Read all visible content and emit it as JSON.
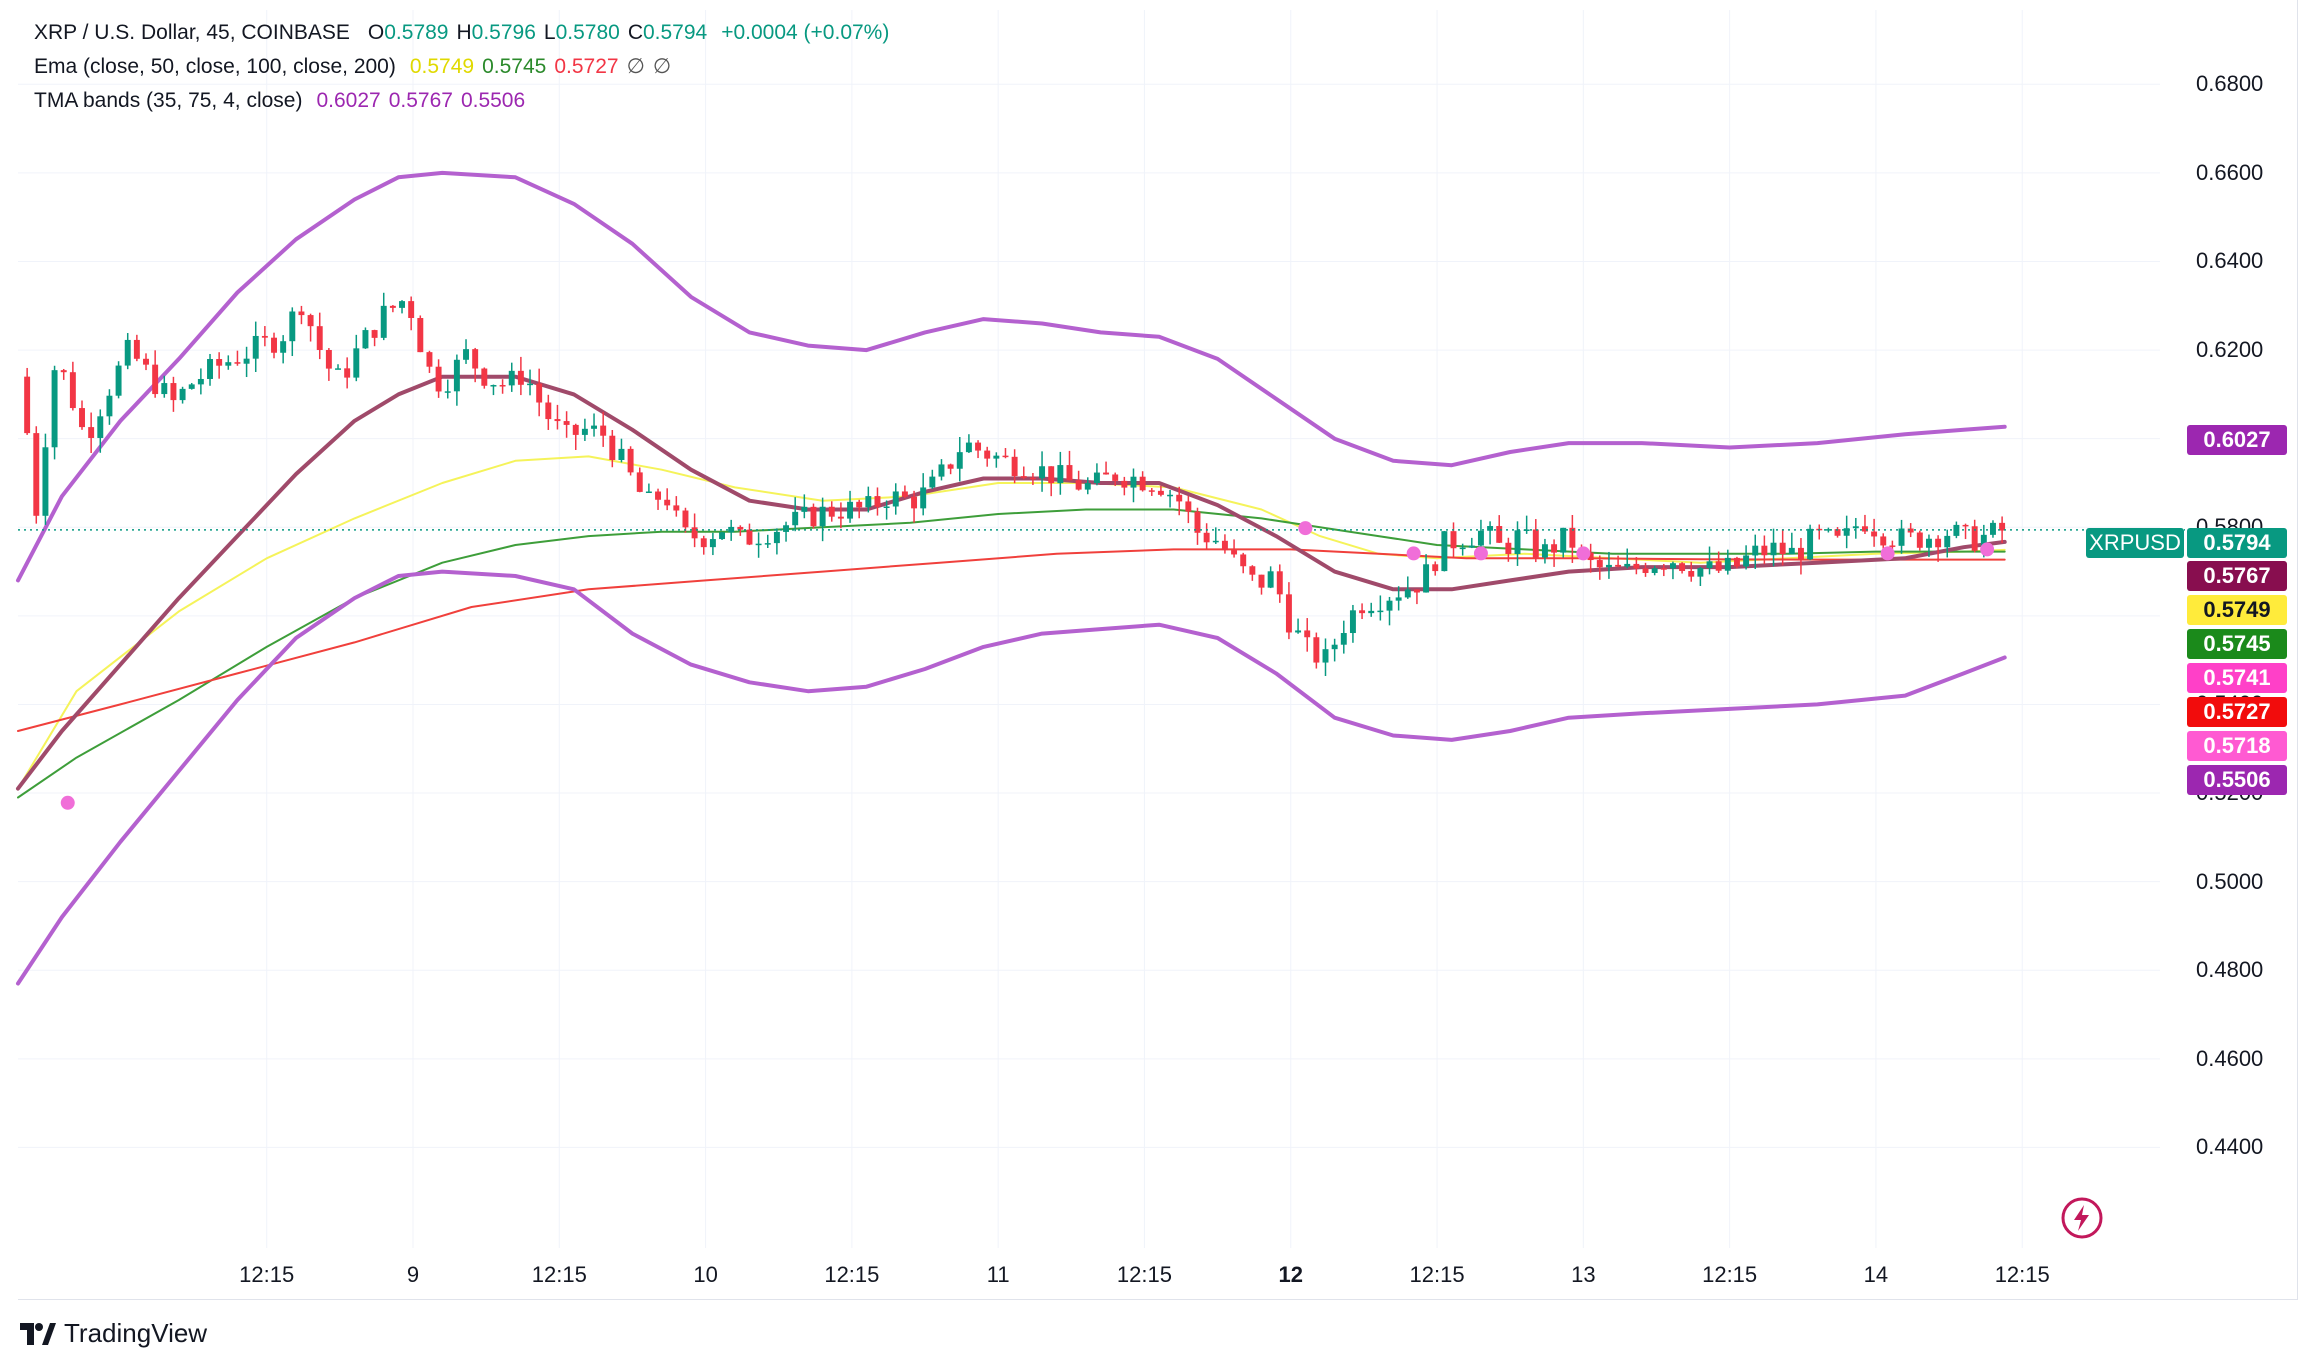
{
  "legend": {
    "symbol": "XRP / U.S. Dollar, 45, COINBASE",
    "o_label": "O",
    "o": "0.5789",
    "h_label": "H",
    "h": "0.5796",
    "l_label": "L",
    "l": "0.5780",
    "c_label": "C",
    "c": "0.5794",
    "change": "+0.0004 (+0.07%)",
    "ema_label": "Ema (close, 50, close, 100, close, 200)",
    "ema_values": [
      "0.5749",
      "0.5745",
      "0.5727"
    ],
    "ema_na": [
      "∅",
      "∅"
    ],
    "tma_label": "TMA bands (35, 75, 4, close)",
    "tma_values": [
      "0.6027",
      "0.5767",
      "0.5506"
    ]
  },
  "badges": {
    "symbol": "XRPUSD",
    "price": "0.5794",
    "tma_mid": "0.5767",
    "ema50": "0.5749",
    "ema100": "0.5745",
    "marker_hi": "0.5741",
    "ema200": "0.5727",
    "marker_lo": "0.5718",
    "tma_low": "0.5506",
    "tma_high": "0.6027"
  },
  "colors": {
    "up": "#089981",
    "down": "#f23645",
    "ema50": "#f5f35a",
    "ema100": "#3e9e3a",
    "ema200": "#f0403c",
    "tma_band": "#b461cf",
    "tma_mid": "#a04a6a",
    "marker": "#f06ed8"
  },
  "branding": {
    "name": "TradingView"
  },
  "chart_data": {
    "type": "candlestick",
    "title": "XRP / U.S. Dollar, 45, COINBASE",
    "xlabel": "",
    "ylabel": "",
    "ylim": [
      0.42,
      0.69
    ],
    "y_ticks": [
      "0.4400",
      "0.4600",
      "0.4800",
      "0.5000",
      "0.5200",
      "0.5400",
      "0.5600",
      "0.5800",
      "0.6000",
      "0.6200",
      "0.6400",
      "0.6600",
      "0.6800"
    ],
    "x_ticks": [
      {
        "label": "12:15",
        "pos": 0.5,
        "bold": false
      },
      {
        "label": "9",
        "pos": 1.0,
        "bold": false
      },
      {
        "label": "12:15",
        "pos": 1.5,
        "bold": false
      },
      {
        "label": "10",
        "pos": 2.0,
        "bold": false
      },
      {
        "label": "12:15",
        "pos": 2.5,
        "bold": false
      },
      {
        "label": "11",
        "pos": 3.0,
        "bold": false
      },
      {
        "label": "12:15",
        "pos": 3.5,
        "bold": false
      },
      {
        "label": "12",
        "pos": 4.0,
        "bold": true
      },
      {
        "label": "12:15",
        "pos": 4.5,
        "bold": false
      },
      {
        "label": "13",
        "pos": 5.0,
        "bold": false
      },
      {
        "label": "12:15",
        "pos": 5.5,
        "bold": false
      },
      {
        "label": "14",
        "pos": 6.0,
        "bold": false
      },
      {
        "label": "12:15",
        "pos": 6.5,
        "bold": false
      }
    ],
    "xrange": [
      -0.35,
      6.8
    ],
    "last_price": 0.5794,
    "close_path": [
      [
        -0.35,
        0.614
      ],
      [
        -0.32,
        0.602
      ],
      [
        -0.28,
        0.58
      ],
      [
        -0.25,
        0.606
      ],
      [
        -0.22,
        0.618
      ],
      [
        -0.18,
        0.612
      ],
      [
        -0.12,
        0.6
      ],
      [
        -0.05,
        0.61
      ],
      [
        0.03,
        0.62
      ],
      [
        0.1,
        0.614
      ],
      [
        0.18,
        0.608
      ],
      [
        0.25,
        0.613
      ],
      [
        0.35,
        0.617
      ],
      [
        0.45,
        0.62
      ],
      [
        0.55,
        0.623
      ],
      [
        0.62,
        0.631
      ],
      [
        0.7,
        0.617
      ],
      [
        0.75,
        0.613
      ],
      [
        0.82,
        0.621
      ],
      [
        0.9,
        0.628
      ],
      [
        0.98,
        0.632
      ],
      [
        1.05,
        0.616
      ],
      [
        1.1,
        0.612
      ],
      [
        1.18,
        0.619
      ],
      [
        1.25,
        0.614
      ],
      [
        1.32,
        0.612
      ],
      [
        1.38,
        0.615
      ],
      [
        1.45,
        0.606
      ],
      [
        1.52,
        0.6
      ],
      [
        1.58,
        0.602
      ],
      [
        1.65,
        0.601
      ],
      [
        1.72,
        0.594
      ],
      [
        1.8,
        0.585
      ],
      [
        1.86,
        0.588
      ],
      [
        1.92,
        0.578
      ],
      [
        2.0,
        0.578
      ],
      [
        2.06,
        0.58
      ],
      [
        2.12,
        0.577
      ],
      [
        2.2,
        0.579
      ],
      [
        2.3,
        0.581
      ],
      [
        2.38,
        0.583
      ],
      [
        2.45,
        0.584
      ],
      [
        2.55,
        0.584
      ],
      [
        2.62,
        0.587
      ],
      [
        2.7,
        0.586
      ],
      [
        2.76,
        0.588
      ],
      [
        2.82,
        0.593
      ],
      [
        2.88,
        0.599
      ],
      [
        2.95,
        0.597
      ],
      [
        3.02,
        0.595
      ],
      [
        3.1,
        0.594
      ],
      [
        3.18,
        0.592
      ],
      [
        3.25,
        0.59
      ],
      [
        3.32,
        0.589
      ],
      [
        3.4,
        0.592
      ],
      [
        3.48,
        0.591
      ],
      [
        3.55,
        0.59
      ],
      [
        3.62,
        0.586
      ],
      [
        3.68,
        0.579
      ],
      [
        3.75,
        0.577
      ],
      [
        3.82,
        0.571
      ],
      [
        3.88,
        0.567
      ],
      [
        3.94,
        0.569
      ],
      [
        4.0,
        0.558
      ],
      [
        4.06,
        0.552
      ],
      [
        4.12,
        0.55
      ],
      [
        4.18,
        0.558
      ],
      [
        4.24,
        0.563
      ],
      [
        4.3,
        0.564
      ],
      [
        4.38,
        0.566
      ],
      [
        4.45,
        0.568
      ],
      [
        4.52,
        0.576
      ],
      [
        4.6,
        0.578
      ],
      [
        4.66,
        0.579
      ],
      [
        4.72,
        0.575
      ],
      [
        4.78,
        0.578
      ],
      [
        4.86,
        0.574
      ],
      [
        4.95,
        0.578
      ],
      [
        5.0,
        0.572
      ],
      [
        5.08,
        0.57
      ],
      [
        5.15,
        0.57
      ],
      [
        5.22,
        0.572
      ],
      [
        5.3,
        0.573
      ],
      [
        5.38,
        0.571
      ],
      [
        5.45,
        0.57
      ],
      [
        5.52,
        0.571
      ],
      [
        5.58,
        0.574
      ],
      [
        5.65,
        0.575
      ],
      [
        5.72,
        0.574
      ],
      [
        5.8,
        0.578
      ],
      [
        5.88,
        0.576
      ],
      [
        5.95,
        0.582
      ],
      [
        6.02,
        0.579
      ],
      [
        6.1,
        0.577
      ],
      [
        6.18,
        0.578
      ],
      [
        6.25,
        0.579
      ],
      [
        6.32,
        0.577
      ],
      [
        6.38,
        0.578
      ],
      [
        6.44,
        0.5794
      ]
    ],
    "series": [
      {
        "name": "Ema 50",
        "color": "#f5f35a",
        "points": [
          [
            -0.35,
            0.521
          ],
          [
            -0.15,
            0.543
          ],
          [
            0.2,
            0.561
          ],
          [
            0.5,
            0.573
          ],
          [
            0.8,
            0.582
          ],
          [
            1.1,
            0.59
          ],
          [
            1.35,
            0.595
          ],
          [
            1.6,
            0.596
          ],
          [
            1.85,
            0.593
          ],
          [
            2.1,
            0.589
          ],
          [
            2.4,
            0.586
          ],
          [
            2.7,
            0.587
          ],
          [
            3.0,
            0.59
          ],
          [
            3.3,
            0.59
          ],
          [
            3.6,
            0.589
          ],
          [
            3.9,
            0.584
          ],
          [
            4.1,
            0.578
          ],
          [
            4.3,
            0.574
          ],
          [
            4.5,
            0.573
          ],
          [
            4.8,
            0.574
          ],
          [
            5.1,
            0.573
          ],
          [
            5.4,
            0.572
          ],
          [
            5.7,
            0.573
          ],
          [
            6.0,
            0.574
          ],
          [
            6.3,
            0.5745
          ],
          [
            6.44,
            0.5749
          ]
        ]
      },
      {
        "name": "Ema 100",
        "color": "#3e9e3a",
        "points": [
          [
            -0.35,
            0.519
          ],
          [
            -0.15,
            0.528
          ],
          [
            0.2,
            0.541
          ],
          [
            0.5,
            0.553
          ],
          [
            0.8,
            0.564
          ],
          [
            1.1,
            0.572
          ],
          [
            1.35,
            0.576
          ],
          [
            1.6,
            0.578
          ],
          [
            1.85,
            0.579
          ],
          [
            2.1,
            0.579
          ],
          [
            2.4,
            0.58
          ],
          [
            2.7,
            0.581
          ],
          [
            3.0,
            0.583
          ],
          [
            3.3,
            0.584
          ],
          [
            3.6,
            0.584
          ],
          [
            3.9,
            0.582
          ],
          [
            4.1,
            0.58
          ],
          [
            4.3,
            0.578
          ],
          [
            4.5,
            0.576
          ],
          [
            4.8,
            0.575
          ],
          [
            5.1,
            0.574
          ],
          [
            5.4,
            0.574
          ],
          [
            5.7,
            0.574
          ],
          [
            6.0,
            0.5745
          ],
          [
            6.3,
            0.5745
          ],
          [
            6.44,
            0.5745
          ]
        ]
      },
      {
        "name": "Ema 200",
        "color": "#f0403c",
        "points": [
          [
            -0.35,
            0.534
          ],
          [
            0.0,
            0.54
          ],
          [
            0.4,
            0.547
          ],
          [
            0.8,
            0.554
          ],
          [
            1.2,
            0.562
          ],
          [
            1.6,
            0.566
          ],
          [
            2.0,
            0.568
          ],
          [
            2.4,
            0.57
          ],
          [
            2.8,
            0.572
          ],
          [
            3.2,
            0.574
          ],
          [
            3.6,
            0.575
          ],
          [
            4.0,
            0.575
          ],
          [
            4.3,
            0.574
          ],
          [
            4.6,
            0.573
          ],
          [
            5.0,
            0.573
          ],
          [
            5.4,
            0.5728
          ],
          [
            5.8,
            0.5727
          ],
          [
            6.2,
            0.5727
          ],
          [
            6.44,
            0.5727
          ]
        ]
      },
      {
        "name": "TMA upper",
        "color": "#b461cf",
        "points": [
          [
            -0.35,
            0.568
          ],
          [
            -0.2,
            0.587
          ],
          [
            0.0,
            0.604
          ],
          [
            0.2,
            0.618
          ],
          [
            0.4,
            0.633
          ],
          [
            0.6,
            0.645
          ],
          [
            0.8,
            0.654
          ],
          [
            0.95,
            0.659
          ],
          [
            1.1,
            0.66
          ],
          [
            1.35,
            0.659
          ],
          [
            1.55,
            0.653
          ],
          [
            1.75,
            0.644
          ],
          [
            1.95,
            0.632
          ],
          [
            2.15,
            0.624
          ],
          [
            2.35,
            0.621
          ],
          [
            2.55,
            0.62
          ],
          [
            2.75,
            0.624
          ],
          [
            2.95,
            0.627
          ],
          [
            3.15,
            0.626
          ],
          [
            3.35,
            0.624
          ],
          [
            3.55,
            0.623
          ],
          [
            3.75,
            0.618
          ],
          [
            3.95,
            0.609
          ],
          [
            4.15,
            0.6
          ],
          [
            4.35,
            0.595
          ],
          [
            4.55,
            0.594
          ],
          [
            4.75,
            0.597
          ],
          [
            4.95,
            0.599
          ],
          [
            5.2,
            0.599
          ],
          [
            5.5,
            0.598
          ],
          [
            5.8,
            0.599
          ],
          [
            6.1,
            0.601
          ],
          [
            6.3,
            0.602
          ],
          [
            6.44,
            0.6027
          ]
        ]
      },
      {
        "name": "TMA mid",
        "color": "#a04a6a",
        "points": [
          [
            -0.35,
            0.521
          ],
          [
            -0.2,
            0.534
          ],
          [
            0.0,
            0.549
          ],
          [
            0.2,
            0.564
          ],
          [
            0.4,
            0.578
          ],
          [
            0.6,
            0.592
          ],
          [
            0.8,
            0.604
          ],
          [
            0.95,
            0.61
          ],
          [
            1.1,
            0.614
          ],
          [
            1.35,
            0.614
          ],
          [
            1.55,
            0.61
          ],
          [
            1.75,
            0.602
          ],
          [
            1.95,
            0.593
          ],
          [
            2.15,
            0.586
          ],
          [
            2.35,
            0.584
          ],
          [
            2.55,
            0.584
          ],
          [
            2.75,
            0.588
          ],
          [
            2.95,
            0.591
          ],
          [
            3.15,
            0.591
          ],
          [
            3.35,
            0.59
          ],
          [
            3.55,
            0.59
          ],
          [
            3.75,
            0.585
          ],
          [
            3.95,
            0.578
          ],
          [
            4.15,
            0.57
          ],
          [
            4.35,
            0.566
          ],
          [
            4.55,
            0.566
          ],
          [
            4.75,
            0.568
          ],
          [
            4.95,
            0.57
          ],
          [
            5.2,
            0.571
          ],
          [
            5.5,
            0.571
          ],
          [
            5.8,
            0.572
          ],
          [
            6.1,
            0.573
          ],
          [
            6.3,
            0.5755
          ],
          [
            6.44,
            0.5767
          ]
        ]
      },
      {
        "name": "TMA lower",
        "color": "#b461cf",
        "points": [
          [
            -0.35,
            0.477
          ],
          [
            -0.2,
            0.492
          ],
          [
            0.0,
            0.509
          ],
          [
            0.2,
            0.525
          ],
          [
            0.4,
            0.541
          ],
          [
            0.6,
            0.555
          ],
          [
            0.8,
            0.564
          ],
          [
            0.95,
            0.569
          ],
          [
            1.1,
            0.57
          ],
          [
            1.35,
            0.569
          ],
          [
            1.55,
            0.566
          ],
          [
            1.75,
            0.556
          ],
          [
            1.95,
            0.549
          ],
          [
            2.15,
            0.545
          ],
          [
            2.35,
            0.543
          ],
          [
            2.55,
            0.544
          ],
          [
            2.75,
            0.548
          ],
          [
            2.95,
            0.553
          ],
          [
            3.15,
            0.556
          ],
          [
            3.35,
            0.557
          ],
          [
            3.55,
            0.558
          ],
          [
            3.75,
            0.555
          ],
          [
            3.95,
            0.547
          ],
          [
            4.15,
            0.537
          ],
          [
            4.35,
            0.533
          ],
          [
            4.55,
            0.532
          ],
          [
            4.75,
            0.534
          ],
          [
            4.95,
            0.537
          ],
          [
            5.2,
            0.538
          ],
          [
            5.5,
            0.539
          ],
          [
            5.8,
            0.54
          ],
          [
            6.1,
            0.542
          ],
          [
            6.3,
            0.547
          ],
          [
            6.44,
            0.5506
          ]
        ]
      }
    ],
    "markers": [
      [
        -0.18,
        0.5178
      ],
      [
        4.05,
        0.5798
      ],
      [
        4.42,
        0.5741
      ],
      [
        4.65,
        0.5741
      ],
      [
        5.0,
        0.5741
      ],
      [
        6.04,
        0.5741
      ],
      [
        6.38,
        0.575
      ]
    ]
  }
}
